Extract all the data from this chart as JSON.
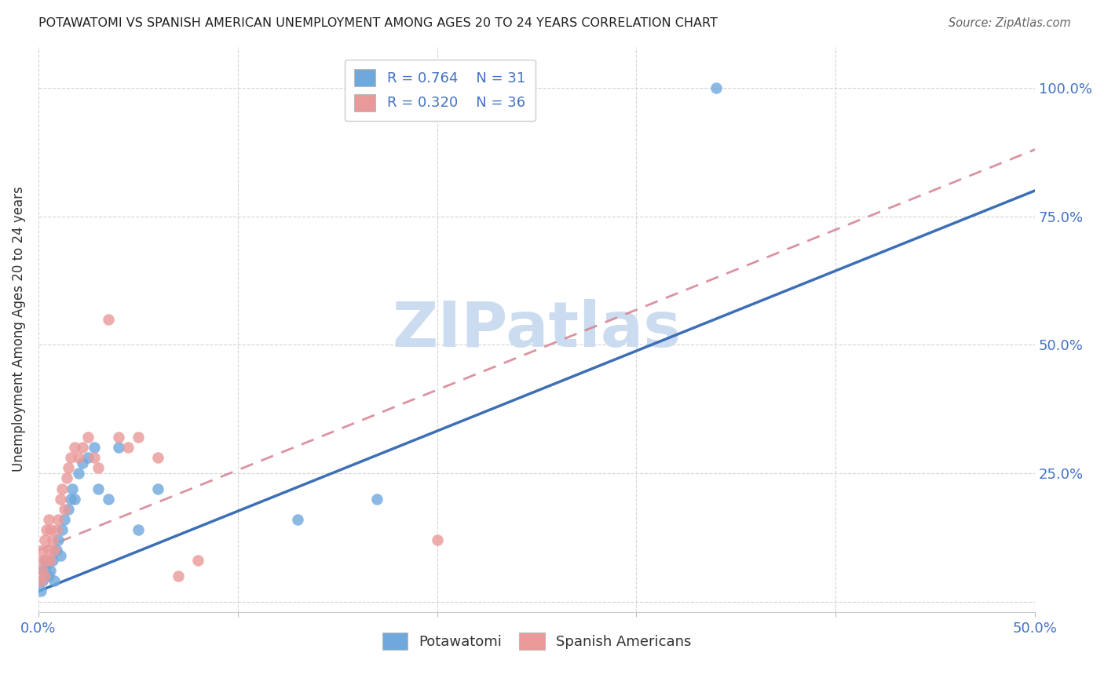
{
  "title": "POTAWATOMI VS SPANISH AMERICAN UNEMPLOYMENT AMONG AGES 20 TO 24 YEARS CORRELATION CHART",
  "source": "Source: ZipAtlas.com",
  "ylabel": "Unemployment Among Ages 20 to 24 years",
  "xlim": [
    0.0,
    0.5
  ],
  "ylim": [
    -0.02,
    1.08
  ],
  "xticks": [
    0.0,
    0.1,
    0.2,
    0.3,
    0.4,
    0.5
  ],
  "xtick_labels": [
    "0.0%",
    "",
    "",
    "",
    "",
    "50.0%"
  ],
  "yticks": [
    0.0,
    0.25,
    0.5,
    0.75,
    1.0
  ],
  "ytick_labels": [
    "",
    "25.0%",
    "50.0%",
    "75.0%",
    "100.0%"
  ],
  "potawatomi_R": 0.764,
  "potawatomi_N": 31,
  "spanish_R": 0.32,
  "spanish_N": 36,
  "blue_color": "#6fa8dc",
  "pink_color": "#ea9999",
  "blue_line_color": "#3d6fb5",
  "pink_line_color": "#d48090",
  "axis_color": "#4472c4",
  "watermark": "ZIPatlas",
  "watermark_color": "#ccdcf0",
  "pot_x": [
    0.001,
    0.002,
    0.002,
    0.003,
    0.003,
    0.004,
    0.005,
    0.006,
    0.007,
    0.008,
    0.009,
    0.01,
    0.011,
    0.012,
    0.013,
    0.015,
    0.016,
    0.017,
    0.018,
    0.02,
    0.022,
    0.025,
    0.028,
    0.03,
    0.035,
    0.04,
    0.05,
    0.06,
    0.13,
    0.17,
    0.34
  ],
  "pot_y": [
    0.02,
    0.04,
    0.06,
    0.05,
    0.08,
    0.07,
    0.05,
    0.06,
    0.08,
    0.04,
    0.1,
    0.12,
    0.09,
    0.14,
    0.16,
    0.18,
    0.2,
    0.22,
    0.2,
    0.25,
    0.27,
    0.28,
    0.3,
    0.22,
    0.2,
    0.3,
    0.14,
    0.22,
    0.16,
    0.2,
    1.0
  ],
  "spa_x": [
    0.001,
    0.001,
    0.002,
    0.002,
    0.003,
    0.003,
    0.004,
    0.004,
    0.005,
    0.005,
    0.006,
    0.006,
    0.007,
    0.008,
    0.009,
    0.01,
    0.011,
    0.012,
    0.013,
    0.014,
    0.015,
    0.016,
    0.018,
    0.02,
    0.022,
    0.025,
    0.028,
    0.03,
    0.035,
    0.04,
    0.045,
    0.05,
    0.06,
    0.07,
    0.08,
    0.2
  ],
  "spa_y": [
    0.04,
    0.08,
    0.06,
    0.1,
    0.05,
    0.12,
    0.08,
    0.14,
    0.1,
    0.16,
    0.08,
    0.14,
    0.12,
    0.1,
    0.14,
    0.16,
    0.2,
    0.22,
    0.18,
    0.24,
    0.26,
    0.28,
    0.3,
    0.28,
    0.3,
    0.32,
    0.28,
    0.26,
    0.55,
    0.32,
    0.3,
    0.32,
    0.28,
    0.05,
    0.08,
    0.12
  ],
  "blue_line_x0": 0.0,
  "blue_line_y0": 0.02,
  "blue_line_x1": 0.5,
  "blue_line_y1": 0.8,
  "pink_line_x0": 0.0,
  "pink_line_y0": 0.1,
  "pink_line_x1": 0.5,
  "pink_line_y1": 0.88
}
